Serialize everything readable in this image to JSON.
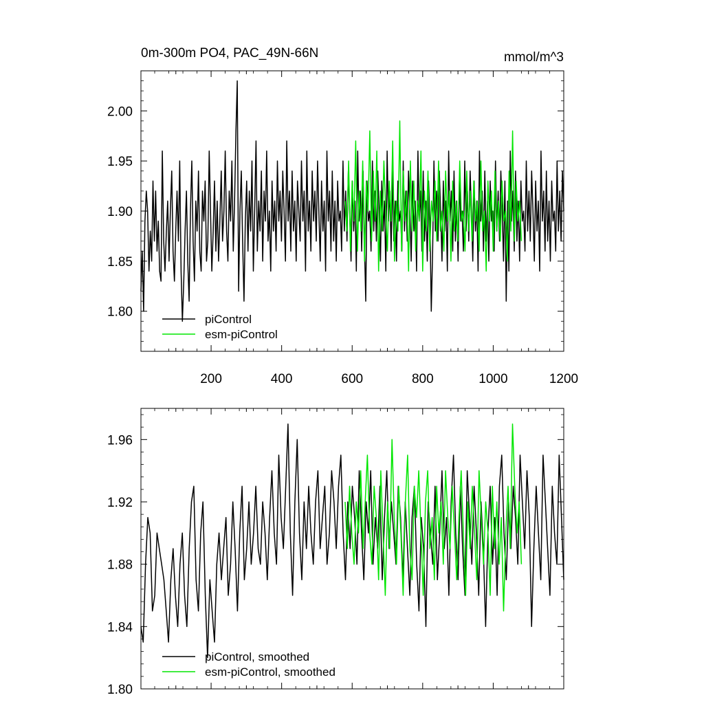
{
  "figure": {
    "title_left": "0m-300m PO4, PAC_49N-66N",
    "title_right": "mmol/m^3"
  },
  "chart_data": [
    {
      "type": "line",
      "panel": "top",
      "x_range": [
        1,
        1200
      ],
      "ylim": [
        1.76,
        2.04
      ],
      "x_ticks": [
        200,
        400,
        600,
        800,
        1000,
        1200
      ],
      "x_tick_labels": [
        "200",
        "400",
        "600",
        "800",
        "1000",
        "1200"
      ],
      "y_ticks": [
        1.8,
        1.85,
        1.9,
        1.95,
        2.0
      ],
      "y_tick_labels": [
        "1.80",
        "1.85",
        "1.90",
        "1.95",
        "2.00"
      ],
      "legend_position": "bottom-left",
      "series": [
        {
          "name": "piControl",
          "color": "#000000",
          "x_start": 1,
          "x_end": 1200,
          "values": [
            1.82,
            1.86,
            1.8,
            1.89,
            1.92,
            1.9,
            1.84,
            1.88,
            1.85,
            1.93,
            1.87,
            1.92,
            1.86,
            1.89,
            1.84,
            1.83,
            1.96,
            1.87,
            1.84,
            1.88,
            1.91,
            1.85,
            1.9,
            1.94,
            1.86,
            1.83,
            1.88,
            1.92,
            1.87,
            1.95,
            1.84,
            1.79,
            1.83,
            1.88,
            1.92,
            1.85,
            1.81,
            1.9,
            1.95,
            1.87,
            1.83,
            1.91,
            1.88,
            1.94,
            1.86,
            1.84,
            1.92,
            1.89,
            1.93,
            1.85,
            1.87,
            1.96,
            1.9,
            1.84,
            1.88,
            1.93,
            1.86,
            1.91,
            1.85,
            1.89,
            1.94,
            1.87,
            1.9,
            1.96,
            1.88,
            1.85,
            1.92,
            1.89,
            1.95,
            1.86,
            1.91,
            1.98,
            2.03,
            1.82,
            1.9,
            1.94,
            1.87,
            1.81,
            1.89,
            1.93,
            1.86,
            1.92,
            1.88,
            1.95,
            1.84,
            1.9,
            1.97,
            1.86,
            1.91,
            1.88,
            1.94,
            1.85,
            1.92,
            1.89,
            1.96,
            1.87,
            1.9,
            1.84,
            1.93,
            1.88,
            1.91,
            1.86,
            1.95,
            1.89,
            1.92,
            1.87,
            1.94,
            1.9,
            1.85,
            1.97,
            1.89,
            1.92,
            1.86,
            1.94,
            1.88,
            1.91,
            1.85,
            1.93,
            1.9,
            1.87,
            1.95,
            1.89,
            1.92,
            1.84,
            1.96,
            1.88,
            1.91,
            1.86,
            1.94,
            1.89,
            1.92,
            1.87,
            1.95,
            1.9,
            1.85,
            1.93,
            1.88,
            1.91,
            1.84,
            1.96,
            1.89,
            1.92,
            1.86,
            1.94,
            1.87,
            1.91,
            1.85,
            1.93,
            1.89,
            1.9,
            1.86,
            1.95,
            1.88,
            1.92,
            1.87,
            1.94,
            1.9,
            1.85,
            1.93,
            1.88,
            1.91,
            1.84,
            1.96,
            1.89,
            1.92,
            1.86,
            1.94,
            1.87,
            1.81,
            1.93,
            1.89,
            1.9,
            1.86,
            1.95,
            1.88,
            1.92,
            1.87,
            1.94,
            1.9,
            1.85,
            1.93,
            1.88,
            1.91,
            1.84,
            1.96,
            1.89,
            1.92,
            1.86,
            1.94,
            1.87,
            1.91,
            1.85,
            1.93,
            1.89,
            1.9,
            1.86,
            1.95,
            1.88,
            1.92,
            1.87,
            1.94,
            1.9,
            1.85,
            1.93,
            1.88,
            1.91,
            1.84,
            1.96,
            1.89,
            1.92,
            1.86,
            1.94,
            1.87,
            1.91,
            1.85,
            1.93,
            1.89,
            1.8,
            1.86,
            1.95,
            1.88,
            1.92,
            1.87,
            1.94,
            1.9,
            1.85,
            1.93,
            1.88,
            1.91,
            1.84,
            1.96,
            1.89,
            1.92,
            1.86,
            1.94,
            1.87,
            1.91,
            1.85,
            1.93,
            1.89,
            1.9,
            1.86,
            1.95,
            1.88,
            1.92,
            1.87,
            1.94,
            1.9,
            1.85,
            1.93,
            1.88,
            1.91,
            1.84,
            1.96,
            1.89,
            1.92,
            1.86,
            1.94,
            1.87,
            1.91,
            1.85,
            1.93,
            1.89,
            1.9,
            1.86,
            1.95,
            1.88,
            1.92,
            1.87,
            1.94,
            1.9,
            1.85,
            1.93,
            1.81,
            1.91,
            1.84,
            1.96,
            1.89,
            1.92,
            1.86,
            1.94,
            1.87,
            1.91,
            1.85,
            1.93,
            1.89,
            1.9,
            1.86,
            1.95,
            1.88,
            1.92,
            1.87,
            1.94,
            1.9,
            1.85,
            1.93,
            1.88,
            1.91,
            1.84,
            1.96,
            1.89,
            1.92,
            1.86,
            1.94,
            1.87,
            1.91,
            1.85,
            1.93,
            1.89,
            1.9,
            1.86,
            1.95,
            1.88,
            1.92,
            1.87,
            1.94,
            1.9
          ]
        },
        {
          "name": "esm-piControl",
          "color": "#00e600",
          "x_start": 580,
          "x_end": 1080,
          "values": [
            1.91,
            1.88,
            1.95,
            1.86,
            1.93,
            1.89,
            1.97,
            1.86,
            1.92,
            1.88,
            1.95,
            1.85,
            1.93,
            1.9,
            1.98,
            1.87,
            1.94,
            1.89,
            1.96,
            1.84,
            1.92,
            1.88,
            1.95,
            1.9,
            1.86,
            1.93,
            1.89,
            1.97,
            1.85,
            1.91,
            1.88,
            1.99,
            1.86,
            1.94,
            1.89,
            1.92,
            1.84,
            1.95,
            1.88,
            1.93,
            1.86,
            1.91,
            1.89,
            1.96,
            1.84,
            1.92,
            1.88,
            1.94,
            1.86,
            1.91,
            1.89,
            1.93,
            1.87,
            1.95,
            1.88,
            1.9,
            1.86,
            1.94,
            1.89,
            1.92,
            1.85,
            1.93,
            1.88,
            1.91,
            1.87,
            1.95,
            1.89,
            1.9,
            1.86,
            1.94,
            1.88,
            1.92,
            1.87,
            1.93,
            1.89,
            1.91,
            1.86,
            1.95,
            1.88,
            1.9,
            1.84,
            1.93,
            1.89,
            1.92,
            1.86,
            1.94,
            1.88,
            1.91,
            1.87,
            1.93,
            1.89,
            1.9,
            1.85,
            1.94,
            1.88,
            1.98,
            1.87,
            1.93,
            1.89,
            1.91,
            1.87
          ]
        }
      ]
    },
    {
      "type": "line",
      "panel": "bottom",
      "x_range": [
        1,
        1200
      ],
      "ylim": [
        1.8,
        1.98
      ],
      "x_ticks": [
        200,
        400,
        600,
        800,
        1000,
        1200
      ],
      "y_ticks": [
        1.8,
        1.84,
        1.88,
        1.92,
        1.96
      ],
      "y_tick_labels": [
        "1.80",
        "1.84",
        "1.88",
        "1.92",
        "1.96"
      ],
      "legend_position": "bottom-left",
      "series": [
        {
          "name": "piControl, smoothed",
          "color": "#000000",
          "x_start": 1,
          "x_end": 1200,
          "values": [
            1.84,
            1.83,
            1.88,
            1.91,
            1.9,
            1.85,
            1.86,
            1.9,
            1.89,
            1.88,
            1.87,
            1.85,
            1.83,
            1.87,
            1.89,
            1.86,
            1.84,
            1.88,
            1.9,
            1.86,
            1.84,
            1.89,
            1.92,
            1.93,
            1.87,
            1.85,
            1.9,
            1.92,
            1.86,
            1.82,
            1.87,
            1.85,
            1.83,
            1.88,
            1.9,
            1.87,
            1.89,
            1.91,
            1.86,
            1.88,
            1.92,
            1.89,
            1.85,
            1.9,
            1.93,
            1.87,
            1.89,
            1.92,
            1.88,
            1.9,
            1.93,
            1.89,
            1.88,
            1.92,
            1.9,
            1.87,
            1.91,
            1.94,
            1.9,
            1.88,
            1.95,
            1.91,
            1.89,
            1.93,
            1.97,
            1.9,
            1.86,
            1.92,
            1.96,
            1.9,
            1.87,
            1.92,
            1.89,
            1.93,
            1.9,
            1.88,
            1.92,
            1.94,
            1.89,
            1.91,
            1.93,
            1.88,
            1.9,
            1.94,
            1.92,
            1.89,
            1.93,
            1.95,
            1.9,
            1.87,
            1.92,
            1.89,
            1.93,
            1.91,
            1.88,
            1.94,
            1.9,
            1.87,
            1.92,
            1.9,
            1.94,
            1.88,
            1.91,
            1.89,
            1.93,
            1.87,
            1.91,
            1.94,
            1.89,
            1.92,
            1.9,
            1.88,
            1.93,
            1.91,
            1.87,
            1.92,
            1.89,
            1.86,
            1.91,
            1.93,
            1.88,
            1.85,
            1.91,
            1.89,
            1.84,
            1.92,
            1.9,
            1.88,
            1.93,
            1.87,
            1.9,
            1.94,
            1.89,
            1.91,
            1.86,
            1.92,
            1.95,
            1.9,
            1.87,
            1.93,
            1.89,
            1.86,
            1.94,
            1.91,
            1.88,
            1.93,
            1.9,
            1.86,
            1.92,
            1.89,
            1.84,
            1.9,
            1.93,
            1.88,
            1.91,
            1.86,
            1.93,
            1.95,
            1.9,
            1.87,
            1.92,
            1.89,
            1.93,
            1.91,
            1.88,
            1.95,
            1.92,
            1.89,
            1.94,
            1.91,
            1.84,
            1.89,
            1.93,
            1.9,
            1.87,
            1.95,
            1.92,
            1.89,
            1.86,
            1.93,
            1.9,
            1.88,
            1.95,
            1.91,
            1.87
          ]
        },
        {
          "name": "esm-piControl, smoothed",
          "color": "#00e600",
          "x_start": 580,
          "x_end": 1080,
          "values": [
            1.92,
            1.89,
            1.93,
            1.9,
            1.88,
            1.92,
            1.9,
            1.94,
            1.89,
            1.92,
            1.95,
            1.9,
            1.88,
            1.93,
            1.91,
            1.87,
            1.94,
            1.9,
            1.86,
            1.92,
            1.89,
            1.96,
            1.91,
            1.88,
            1.93,
            1.9,
            1.86,
            1.92,
            1.95,
            1.89,
            1.87,
            1.93,
            1.91,
            1.94,
            1.9,
            1.86,
            1.92,
            1.94,
            1.89,
            1.91,
            1.87,
            1.93,
            1.9,
            1.92,
            1.88,
            1.94,
            1.91,
            1.89,
            1.93,
            1.9,
            1.87,
            1.91,
            1.94,
            1.9,
            1.86,
            1.92,
            1.89,
            1.93,
            1.9,
            1.87,
            1.94,
            1.91,
            1.88,
            1.92,
            1.9,
            1.86,
            1.93,
            1.89,
            1.92,
            1.88,
            1.91,
            1.85,
            1.9,
            1.93,
            1.89,
            1.97,
            1.93,
            1.9,
            1.92,
            1.88
          ]
        }
      ]
    }
  ]
}
